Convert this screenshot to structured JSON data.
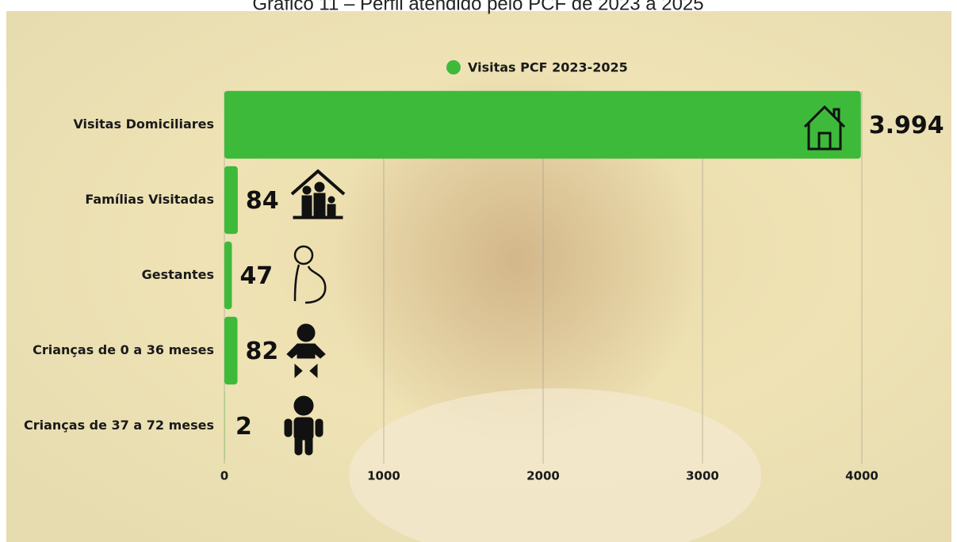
{
  "chart_data": {
    "type": "bar",
    "orientation": "horizontal",
    "title": "Gráfico 11 – Perfil atendido pelo PCF de 2023 a 2025",
    "categories": [
      "Visitas Domiciliares",
      "Famílias Visitadas",
      "Gestantes",
      "Crianças de 0 a 36 meses",
      "Crianças de 37 a 72 meses"
    ],
    "series": [
      {
        "name": "Visitas PCF 2023-2025",
        "color": "#3dba3a",
        "values": [
          3994,
          84,
          47,
          82,
          2
        ],
        "value_labels": [
          "3.994",
          "84",
          "47",
          "82",
          "2"
        ]
      }
    ],
    "xlim": [
      0,
      4000
    ],
    "xticks": [
      0,
      1000,
      2000,
      3000,
      4000
    ],
    "grid": true,
    "legend": "top"
  }
}
